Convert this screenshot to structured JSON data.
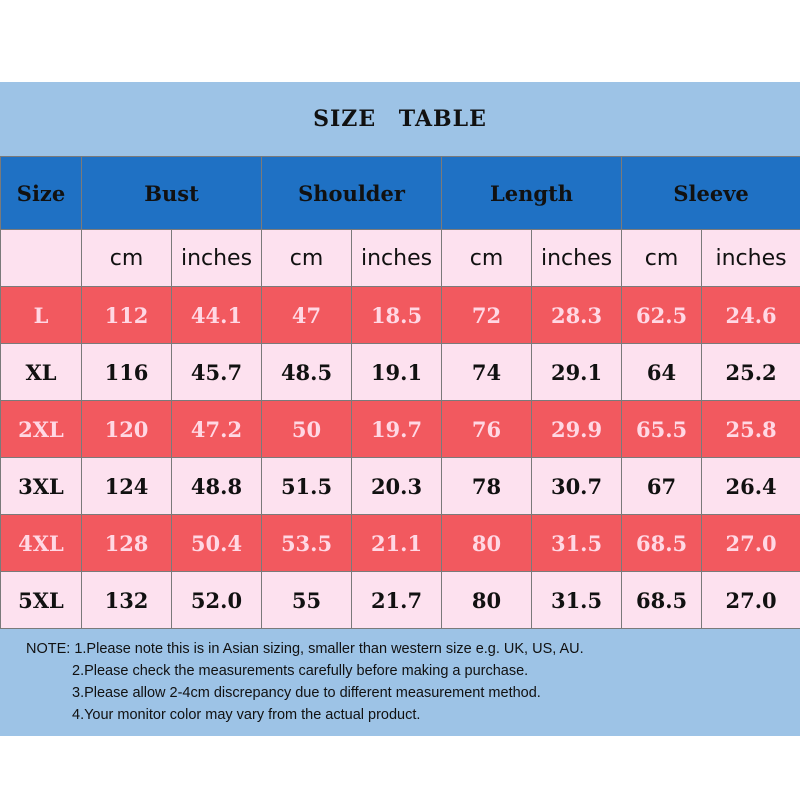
{
  "title": "SIZE  TABLE",
  "table": {
    "headers": [
      "Size",
      "Bust",
      "Shoulder",
      "Length",
      "Sleeve"
    ],
    "units": [
      "",
      "cm",
      "inches",
      "cm",
      "inches",
      "cm",
      "inches",
      "cm",
      "inches"
    ],
    "rows": [
      {
        "size": "L",
        "values": [
          "112",
          "44.1",
          "47",
          "18.5",
          "72",
          "28.3",
          "62.5",
          "24.6"
        ]
      },
      {
        "size": "XL",
        "values": [
          "116",
          "45.7",
          "48.5",
          "19.1",
          "74",
          "29.1",
          "64",
          "25.2"
        ]
      },
      {
        "size": "2XL",
        "values": [
          "120",
          "47.2",
          "50",
          "19.7",
          "76",
          "29.9",
          "65.5",
          "25.8"
        ]
      },
      {
        "size": "3XL",
        "values": [
          "124",
          "48.8",
          "51.5",
          "20.3",
          "78",
          "30.7",
          "67",
          "26.4"
        ]
      },
      {
        "size": "4XL",
        "values": [
          "128",
          "50.4",
          "53.5",
          "21.1",
          "80",
          "31.5",
          "68.5",
          "27.0"
        ]
      },
      {
        "size": "5XL",
        "values": [
          "132",
          "52.0",
          "55",
          "21.7",
          "80",
          "31.5",
          "68.5",
          "27.0"
        ]
      }
    ]
  },
  "notes": [
    "NOTE: 1.Please note this is in Asian sizing, smaller than western size e.g. UK, US, AU.",
    "2.Please check the measurements carefully before making a purchase.",
    "3.Please allow 2-4cm discrepancy due to different measurement method.",
    "4.Your monitor color may vary from the actual product."
  ],
  "colors": {
    "panel_bg": "#9dc3e6",
    "header_bg": "#1f71c4",
    "row_red": "#f2595f",
    "row_pink": "#fde1ef"
  }
}
